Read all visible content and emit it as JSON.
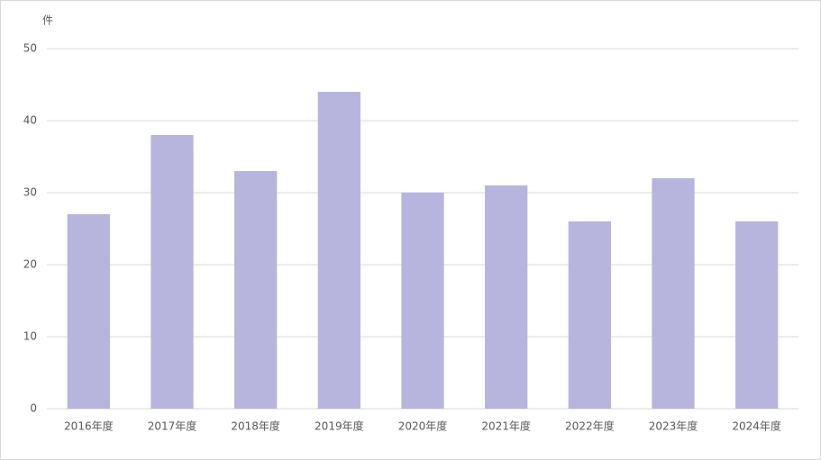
{
  "chart_data": {
    "type": "bar",
    "y_label": "件",
    "categories": [
      "2016年度",
      "2017年度",
      "2018年度",
      "2019年度",
      "2020年度",
      "2021年度",
      "2022年度",
      "2023年度",
      "2024年度"
    ],
    "values": [
      27,
      38,
      33,
      44,
      30,
      31,
      26,
      32,
      26
    ],
    "color": "#b7b4dd",
    "ylim": [
      0,
      50
    ],
    "yticks": [
      0,
      10,
      20,
      30,
      40,
      50
    ],
    "grid": true
  }
}
